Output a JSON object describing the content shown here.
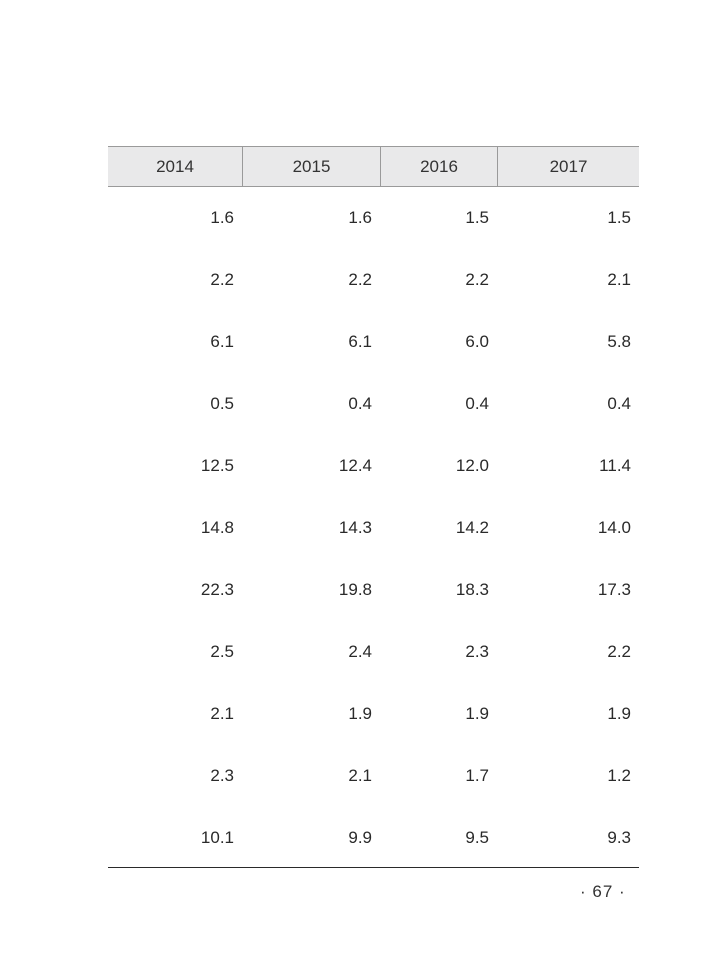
{
  "table": {
    "headers": [
      "2014",
      "2015",
      "2016",
      "2017"
    ],
    "rows": [
      [
        "1.6",
        "1.6",
        "1.5",
        "1.5"
      ],
      [
        "2.2",
        "2.2",
        "2.2",
        "2.1"
      ],
      [
        "6.1",
        "6.1",
        "6.0",
        "5.8"
      ],
      [
        "0.5",
        "0.4",
        "0.4",
        "0.4"
      ],
      [
        "12.5",
        "12.4",
        "12.0",
        "11.4"
      ],
      [
        "14.8",
        "14.3",
        "14.2",
        "14.0"
      ],
      [
        "22.3",
        "19.8",
        "18.3",
        "17.3"
      ],
      [
        "2.5",
        "2.4",
        "2.3",
        "2.2"
      ],
      [
        "2.1",
        "1.9",
        "1.9",
        "1.9"
      ],
      [
        "2.3",
        "2.1",
        "1.7",
        "1.2"
      ],
      [
        "10.1",
        "9.9",
        "9.5",
        "9.3"
      ]
    ]
  },
  "footer": {
    "page_number": "· 67 ·"
  }
}
